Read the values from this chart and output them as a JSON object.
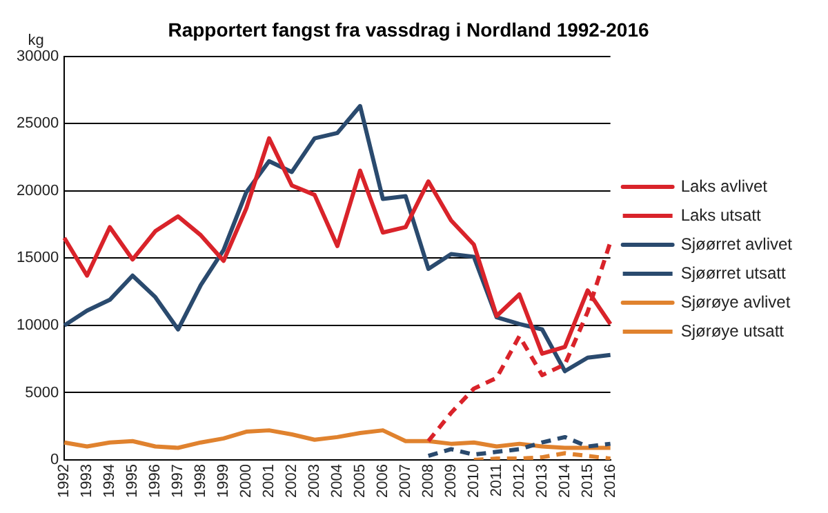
{
  "chart_data": {
    "type": "line",
    "title": "Rapportert fangst fra vassdrag i Nordland 1992-2016",
    "ylabel": "kg",
    "categories": [
      "1992",
      "1993",
      "1994",
      "1995",
      "1996",
      "1997",
      "1998",
      "1999",
      "2000",
      "2001",
      "2002",
      "2003",
      "2004",
      "2005",
      "2006",
      "2007",
      "2008",
      "2009",
      "2010",
      "2011",
      "2012",
      "2013",
      "2014",
      "2015",
      "2016"
    ],
    "series": [
      {
        "name": "Laks avlivet",
        "color": "#d9232a",
        "line_style": "solid",
        "values": [
          16500,
          13700,
          17300,
          14900,
          17000,
          18100,
          16700,
          14800,
          18700,
          23900,
          20400,
          19700,
          15900,
          21500,
          16900,
          17300,
          20700,
          17800,
          16000,
          10700,
          12300,
          7900,
          8400,
          12600,
          10100
        ]
      },
      {
        "name": "Laks utsatt",
        "color": "#d9232a",
        "line_style": "dashed",
        "values": [
          null,
          null,
          null,
          null,
          null,
          null,
          null,
          null,
          null,
          null,
          null,
          null,
          null,
          null,
          null,
          null,
          1400,
          3500,
          5300,
          6100,
          9200,
          6300,
          7100,
          11000,
          16200
        ]
      },
      {
        "name": "Sjøørret avlivet",
        "color": "#2a4a6e",
        "line_style": "solid",
        "values": [
          10000,
          11100,
          11900,
          13700,
          12100,
          9700,
          13000,
          15600,
          19900,
          22200,
          21400,
          23900,
          24300,
          26300,
          19400,
          19600,
          14200,
          15300,
          15100,
          10600,
          10100,
          9700,
          6600,
          7600,
          7800
        ]
      },
      {
        "name": "Sjøørret utsatt",
        "color": "#2a4a6e",
        "line_style": "dashed",
        "values": [
          null,
          null,
          null,
          null,
          null,
          null,
          null,
          null,
          null,
          null,
          null,
          null,
          null,
          null,
          null,
          null,
          300,
          800,
          400,
          600,
          800,
          1300,
          1700,
          1000,
          1200
        ]
      },
      {
        "name": "Sjørøye avlivet",
        "color": "#e0822e",
        "line_style": "solid",
        "values": [
          1300,
          1000,
          1300,
          1400,
          1000,
          900,
          1300,
          1600,
          2100,
          2200,
          1900,
          1500,
          1700,
          2000,
          2200,
          1400,
          1400,
          1200,
          1300,
          1000,
          1200,
          1000,
          900,
          900,
          900
        ]
      },
      {
        "name": "Sjørøye utsatt",
        "color": "#e0822e",
        "line_style": "dashed",
        "values": [
          null,
          null,
          null,
          null,
          null,
          null,
          null,
          null,
          null,
          null,
          null,
          null,
          null,
          null,
          null,
          null,
          null,
          null,
          0,
          100,
          100,
          200,
          500,
          300,
          100
        ]
      }
    ],
    "ylim": [
      0,
      30000
    ],
    "yticks": [
      0,
      5000,
      10000,
      15000,
      20000,
      25000,
      30000
    ],
    "grid": "y",
    "legend": "right",
    "marker": "none"
  }
}
